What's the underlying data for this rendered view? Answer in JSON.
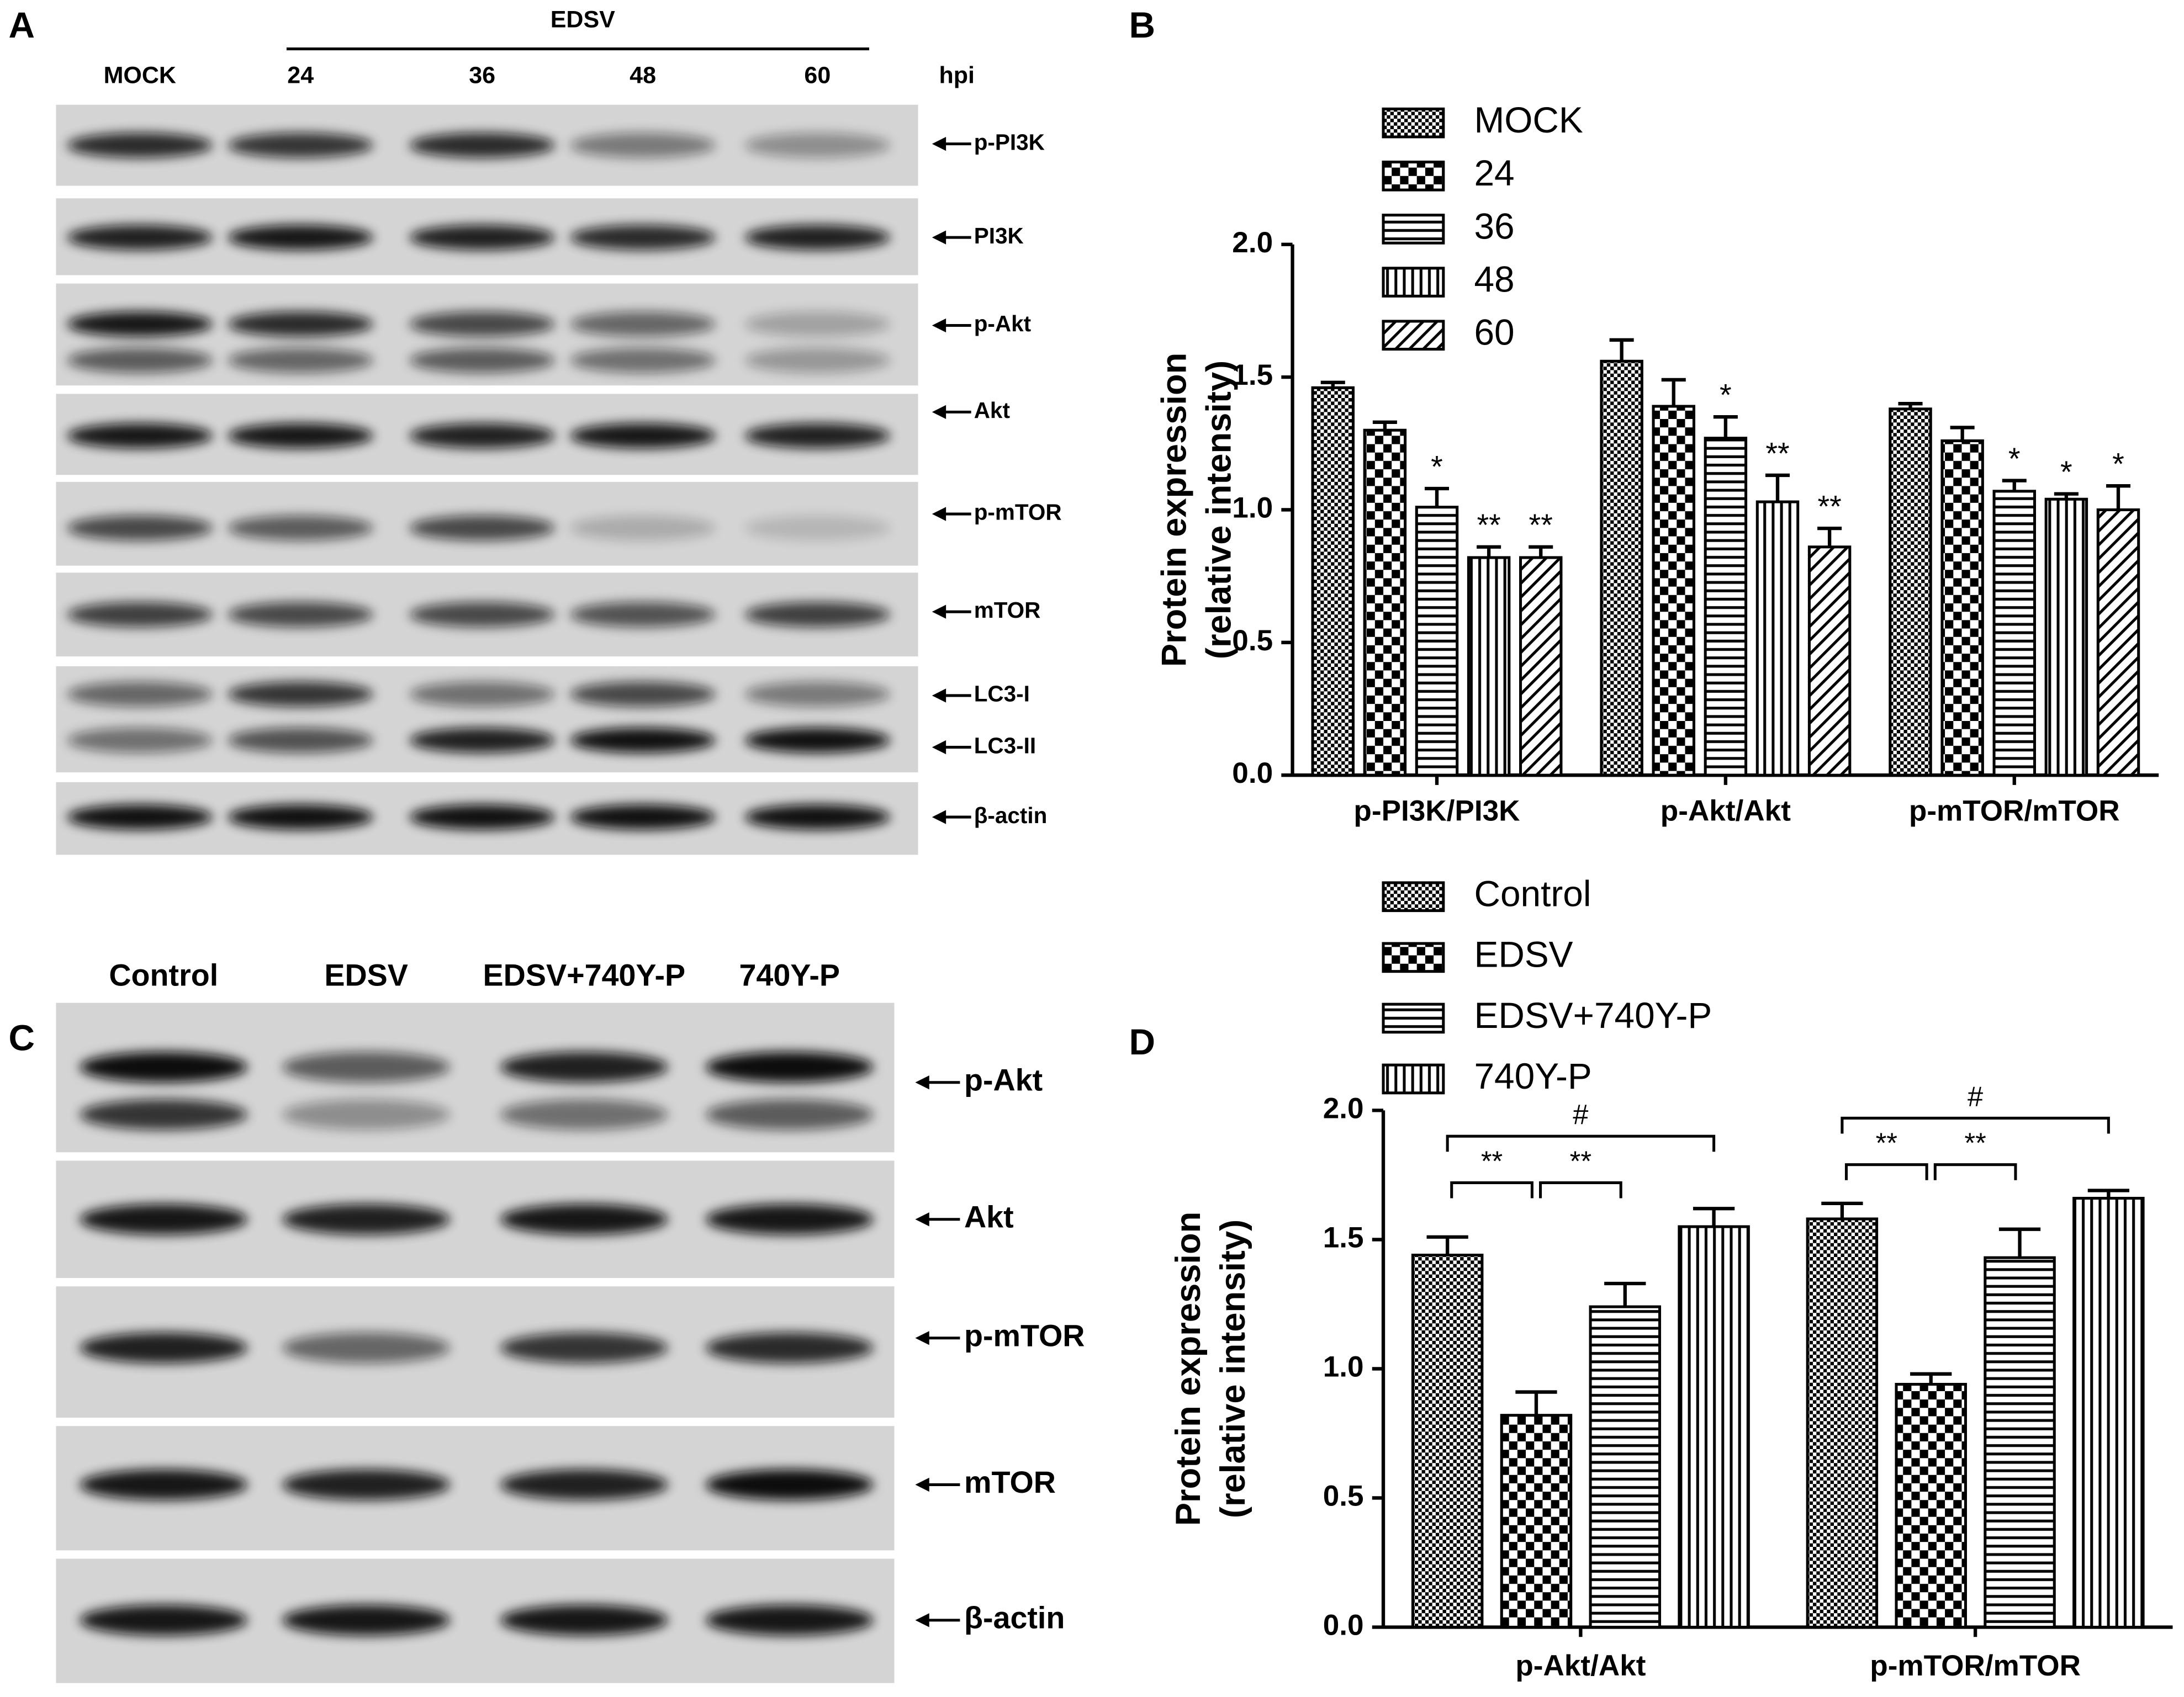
{
  "panels": {
    "a": "A",
    "b": "B",
    "c": "C",
    "d": "D"
  },
  "blot_a": {
    "group": "EDSV",
    "unit": "hpi",
    "lanes": [
      "MOCK",
      "24",
      "36",
      "48",
      "60"
    ],
    "rows": [
      "p-PI3K",
      "PI3K",
      "p-Akt",
      "Akt",
      "p-mTOR",
      "mTOR",
      "LC3-I",
      "LC3-II",
      "β-actin"
    ]
  },
  "blot_c": {
    "lanes": [
      "Control",
      "EDSV",
      "EDSV+740Y-P",
      "740Y-P"
    ],
    "rows": [
      "p-Akt",
      "Akt",
      "p-mTOR",
      "mTOR",
      "β-actin"
    ]
  },
  "chart_data": [
    {
      "type": "bar",
      "ylabel": [
        "Protein expression",
        "(relative intensity)"
      ],
      "categories": [
        "p-PI3K/PI3K",
        "p-Akt/Akt",
        "p-mTOR/mTOR"
      ],
      "series": [
        {
          "name": "MOCK",
          "color": "#000000",
          "pattern": "checker-fine",
          "values": [
            1.46,
            1.56,
            1.38
          ],
          "errors": [
            0.02,
            0.08,
            0.02
          ]
        },
        {
          "name": "24",
          "color": "#000000",
          "pattern": "checker",
          "values": [
            1.3,
            1.39,
            1.26
          ],
          "errors": [
            0.03,
            0.1,
            0.05
          ]
        },
        {
          "name": "36",
          "color": "#000000",
          "pattern": "hlines",
          "values": [
            1.01,
            1.27,
            1.07
          ],
          "errors": [
            0.07,
            0.08,
            0.04
          ],
          "marks": [
            "*",
            "*",
            "*"
          ]
        },
        {
          "name": "48",
          "color": "#000000",
          "pattern": "vlines",
          "values": [
            0.82,
            1.03,
            1.04
          ],
          "errors": [
            0.04,
            0.1,
            0.02
          ],
          "marks": [
            "**",
            "**",
            "*"
          ]
        },
        {
          "name": "60",
          "color": "#000000",
          "pattern": "diag",
          "values": [
            0.82,
            0.86,
            1.0
          ],
          "errors": [
            0.04,
            0.07,
            0.09
          ],
          "marks": [
            "**",
            "**",
            "*"
          ]
        }
      ],
      "ylim": [
        0,
        2
      ],
      "yticks": [
        {
          "value": 0,
          "label": "0.0"
        },
        0.5,
        {
          "value": 1,
          "label": "1.0"
        },
        1.5,
        {
          "value": 2,
          "label": "2.0"
        }
      ]
    },
    {
      "type": "bar",
      "ylabel": [
        "Protein expression",
        "(relative intensity)"
      ],
      "categories": [
        "p-Akt/Akt",
        "p-mTOR/mTOR"
      ],
      "series": [
        {
          "name": "Control",
          "color": "#000000",
          "pattern": "checker-fine",
          "values": [
            1.44,
            1.58
          ],
          "errors": [
            0.07,
            0.06
          ]
        },
        {
          "name": "EDSV",
          "color": "#000000",
          "pattern": "checker",
          "values": [
            0.82,
            0.94
          ],
          "errors": [
            0.09,
            0.04
          ]
        },
        {
          "name": "EDSV+740Y-P",
          "color": "#000000",
          "pattern": "hlines",
          "values": [
            1.24,
            1.43
          ],
          "errors": [
            0.09,
            0.11
          ]
        },
        {
          "name": "740Y-P",
          "color": "#000000",
          "pattern": "vlines",
          "values": [
            1.55,
            1.66
          ],
          "errors": [
            0.07,
            0.03
          ]
        }
      ],
      "brackets": [
        {
          "label": "**",
          "between": [
            "Control",
            "EDSV"
          ]
        },
        {
          "label": "**",
          "between": [
            "EDSV",
            "EDSV+740Y-P"
          ]
        },
        {
          "label": "#",
          "between": [
            "Control",
            "740Y-P"
          ]
        }
      ],
      "ylim": [
        0,
        2
      ],
      "yticks": [
        {
          "value": 0,
          "label": "0.0"
        },
        0.5,
        {
          "value": 1,
          "label": "1.0"
        },
        1.5,
        {
          "value": 2,
          "label": "2.0"
        }
      ]
    }
  ]
}
